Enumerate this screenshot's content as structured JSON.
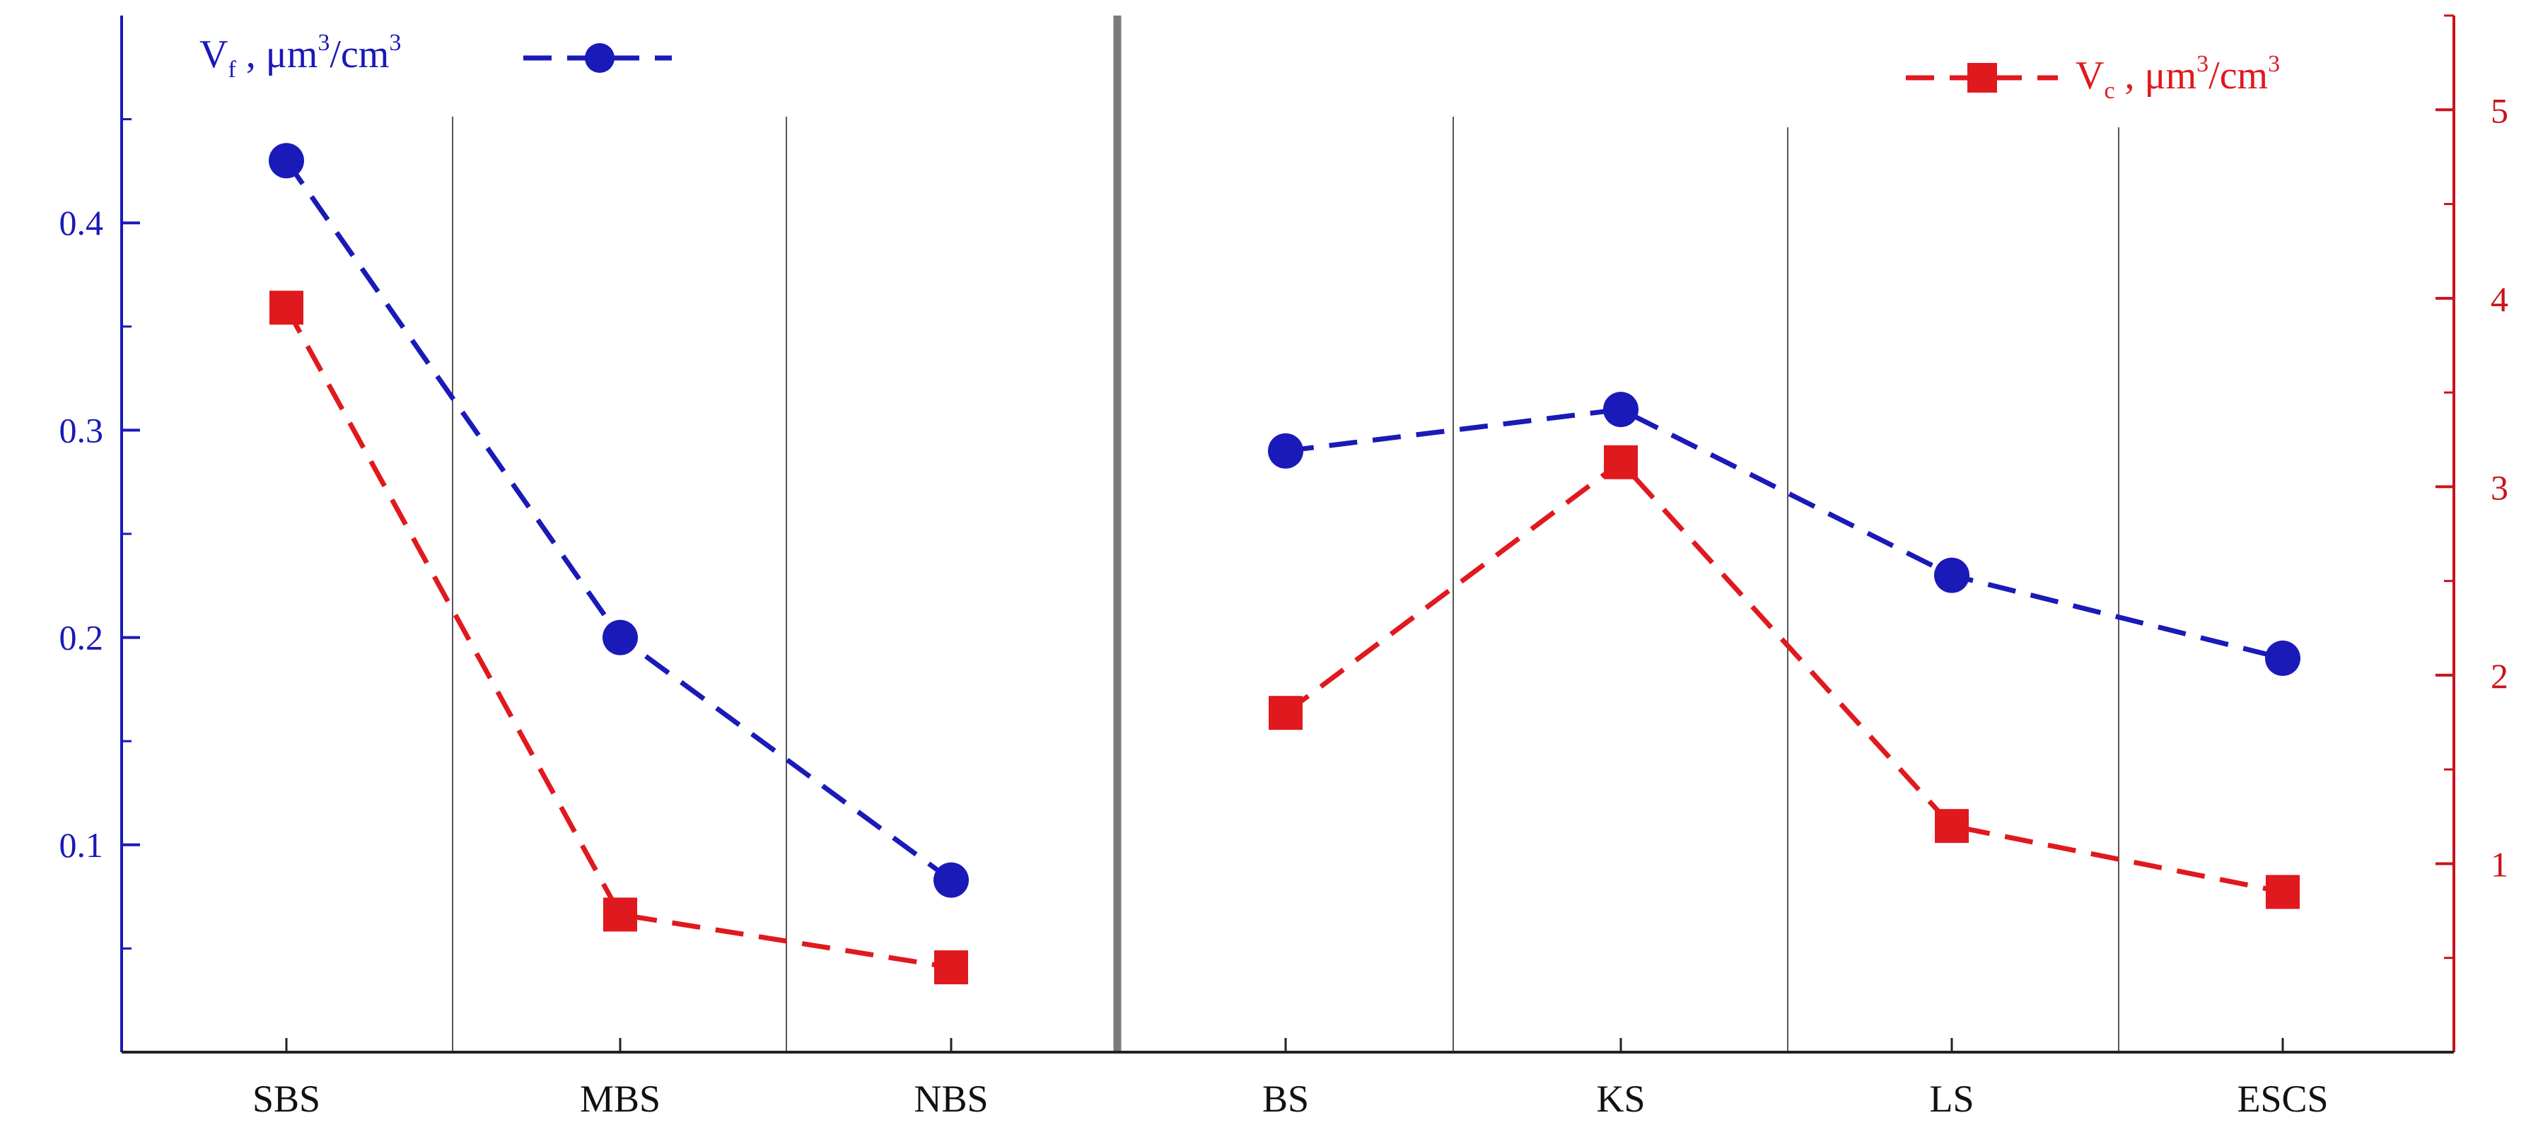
{
  "chart_data": {
    "type": "line",
    "categories": [
      "SBS",
      "MBS",
      "NBS",
      "BS",
      "KS",
      "LS",
      "ESCS"
    ],
    "series": [
      {
        "name": "Vf, μm³/cm³",
        "axis": "left",
        "marker": "circle",
        "values": [
          0.43,
          0.2,
          0.083,
          0.29,
          0.31,
          0.23,
          0.19
        ],
        "segments": [
          [
            0,
            2
          ],
          [
            3,
            6
          ]
        ],
        "color": "#1a1ab8"
      },
      {
        "name": "Vc, μm³/cm³",
        "axis": "right",
        "marker": "square",
        "values": [
          3.95,
          0.73,
          0.45,
          1.8,
          3.13,
          1.2,
          0.85
        ],
        "segments": [
          [
            0,
            2
          ],
          [
            3,
            6
          ]
        ],
        "color": "#e0191e"
      }
    ],
    "left_axis": {
      "range": [
        0,
        0.5
      ],
      "ticks": [
        "0.1",
        "0.2",
        "0.3",
        "0.4"
      ],
      "color": "#1a1ab8"
    },
    "right_axis": {
      "range": [
        0,
        5.5
      ],
      "ticks": [
        "1",
        "2",
        "3",
        "4",
        "5"
      ],
      "color": "#c8141a"
    },
    "legend": {
      "vf": {
        "main": "V",
        "sub": "f",
        "mid": " , μm",
        "sup": "3",
        "end": "/cm",
        "sup2": "3"
      },
      "vc": {
        "main": "V",
        "sub": "c",
        "mid": " , μm",
        "sup": "3",
        "end": "/cm",
        "sup2": "3"
      }
    },
    "grid": "vertical separators between categories",
    "group_divider_after": "NBS"
  }
}
